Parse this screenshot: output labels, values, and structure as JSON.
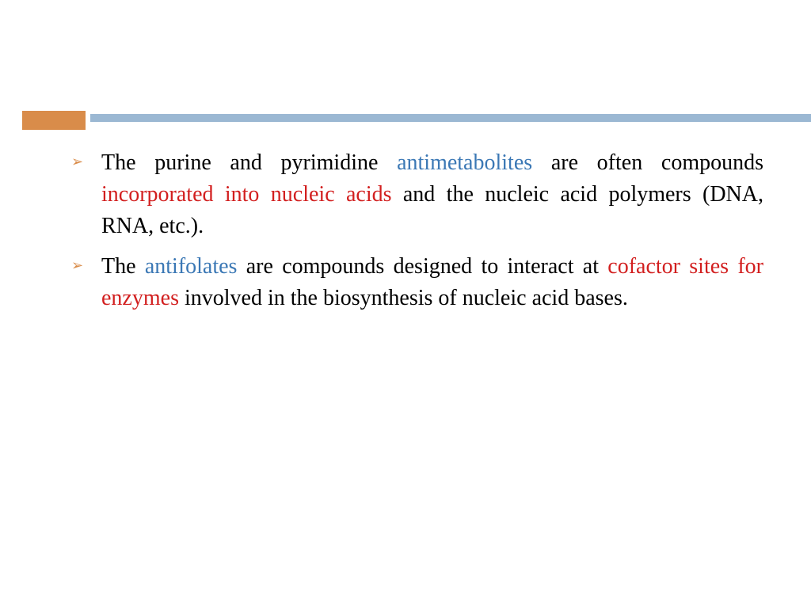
{
  "colors": {
    "orange_block": "#d98c4a",
    "blue_bar": "#9bb8d3",
    "bullet_marker": "#d98c4a",
    "text_black": "#000000",
    "text_blue": "#3b78b5",
    "text_red": "#d21f1f"
  },
  "bullets": [
    {
      "segments": [
        {
          "text": "The purine and pyrimidine ",
          "color": "black"
        },
        {
          "text": "antimetabolites",
          "color": "blue"
        },
        {
          "text": " are often compounds ",
          "color": "black"
        },
        {
          "text": "incorporated into nucleic acids",
          "color": "red"
        },
        {
          "text": " and the nucleic acid polymers (DNA, RNA, etc.).",
          "color": "black"
        }
      ]
    },
    {
      "segments": [
        {
          "text": " The ",
          "color": "black"
        },
        {
          "text": "antifolates",
          "color": "blue"
        },
        {
          "text": " are compounds designed to interact at ",
          "color": "black"
        },
        {
          "text": "cofactor sites for enzymes",
          "color": "red"
        },
        {
          "text": " involved in the biosynthesis of nucleic acid bases.",
          "color": "black"
        }
      ]
    }
  ],
  "bullet_glyph": "➢"
}
